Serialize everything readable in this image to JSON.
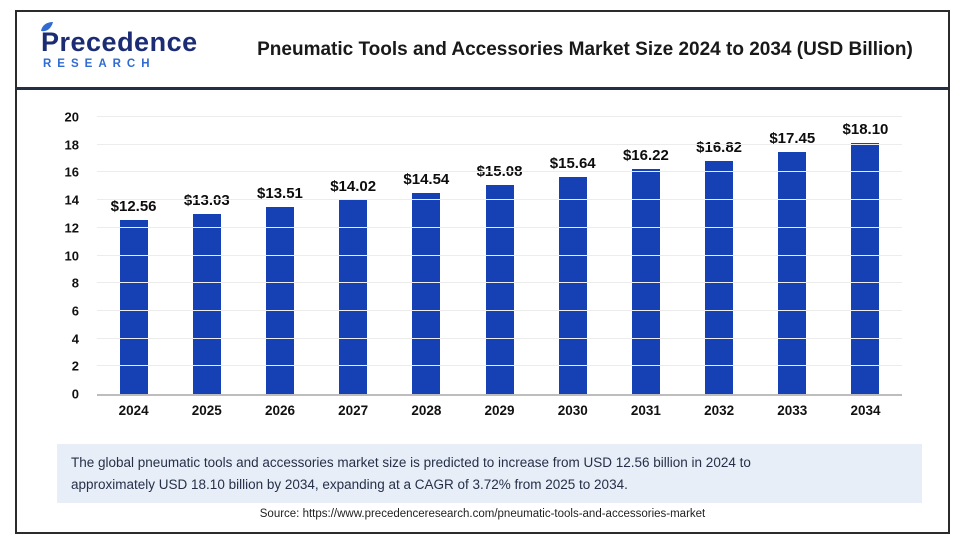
{
  "header": {
    "logo": {
      "line1": "Precedence",
      "line2": "RESEARCH"
    },
    "title": "Pneumatic Tools and Accessories Market Size 2024 to 2034 (USD Billion)"
  },
  "chart_data": {
    "type": "bar",
    "title": "Pneumatic Tools and Accessories Market Size 2024 to 2034 (USD Billion)",
    "categories": [
      "2024",
      "2025",
      "2026",
      "2027",
      "2028",
      "2029",
      "2030",
      "2031",
      "2032",
      "2033",
      "2034"
    ],
    "values": [
      12.56,
      13.03,
      13.51,
      14.02,
      14.54,
      15.08,
      15.64,
      16.22,
      16.82,
      17.45,
      18.1
    ],
    "labels": [
      "$12.56",
      "$13.03",
      "$13.51",
      "$14.02",
      "$14.54",
      "$15.08",
      "$15.64",
      "$16.22",
      "$16.82",
      "$17.45",
      "$18.10"
    ],
    "xlabel": "",
    "ylabel": "",
    "ylim": [
      0,
      20
    ],
    "yticks": [
      0,
      2,
      4,
      6,
      8,
      10,
      12,
      14,
      16,
      18,
      20
    ],
    "grid": "on",
    "legend": "none",
    "bar_color": "#1641b4"
  },
  "description": {
    "lines": [
      "The global pneumatic tools and accessories market size is predicted to increase from USD 12.56 billion in 2024 to",
      "approximately USD 18.10 billion by 2034, expanding at a CAGR of 3.72% from 2025 to 2034."
    ]
  },
  "source": {
    "text": "Source: https://www.precedenceresearch.com/pneumatic-tools-and-accessories-market"
  },
  "colors": {
    "bar": "#1641b4",
    "description_bg": "#e8eef8",
    "header_divider": "#252e47",
    "frame_border": "#2b2b2b",
    "logo_navy": "#1b2c74",
    "logo_blue": "#2f6bd0"
  }
}
